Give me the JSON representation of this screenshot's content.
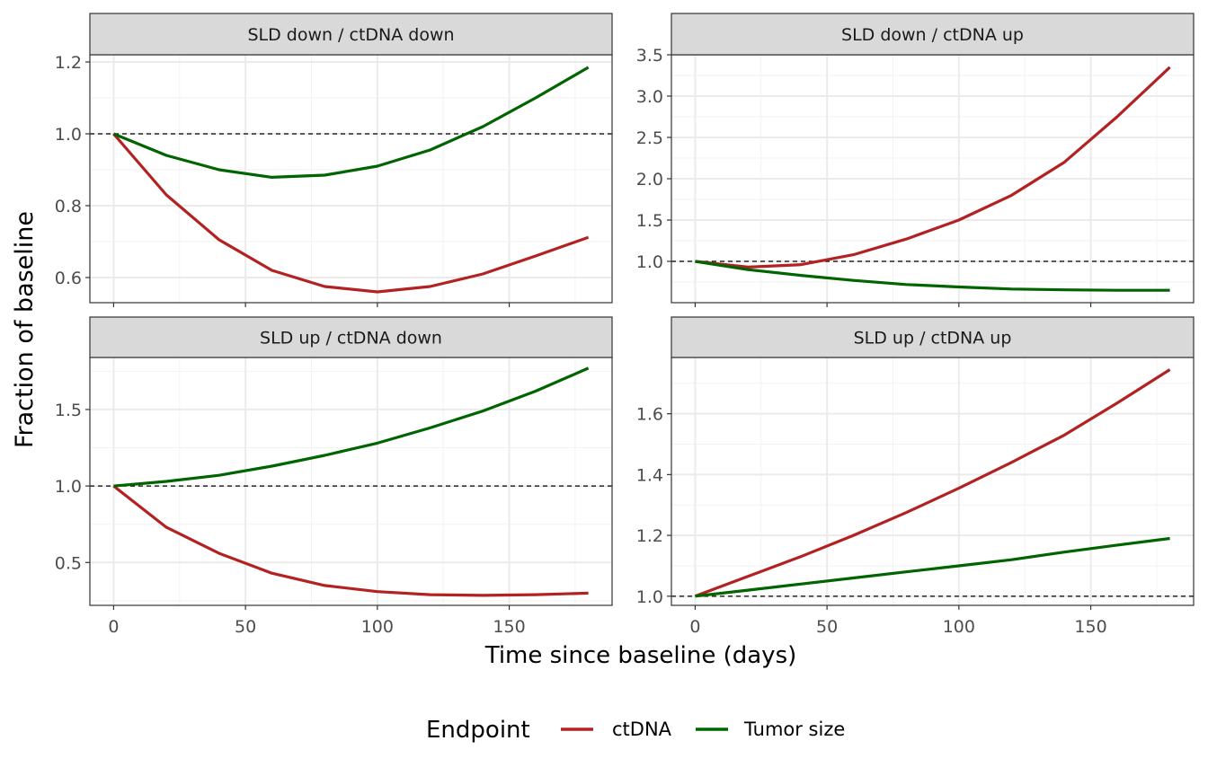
{
  "figure": {
    "ylabel": "Fraction of baseline",
    "xlabel": "Time since baseline (days)",
    "legend": {
      "title": "Endpoint",
      "placement": "bottom",
      "items": [
        {
          "label": "ctDNA",
          "color": "#B22222"
        },
        {
          "label": "Tumor size",
          "color": "#006400"
        }
      ]
    },
    "reference_line": {
      "y": 1.0,
      "style": "dashed",
      "color": "#000000"
    },
    "grid": true
  },
  "chart_data": [
    {
      "type": "line",
      "title": "SLD down / ctDNA down",
      "xlim": [
        -9,
        189
      ],
      "ylim": [
        0.53,
        1.22
      ],
      "x_ticks": [
        0,
        50,
        100,
        150
      ],
      "y_ticks": [
        0.6,
        0.8,
        1.0,
        1.2
      ],
      "y_tick_labels": [
        "0.6",
        "0.8",
        "1.0",
        "1.2"
      ],
      "show_x_tick_labels": false,
      "series": [
        {
          "name": "ctDNA",
          "color": "#B22222",
          "x": [
            0,
            20,
            40,
            60,
            80,
            100,
            120,
            140,
            160,
            180
          ],
          "y": [
            1.0,
            0.83,
            0.705,
            0.62,
            0.575,
            0.56,
            0.575,
            0.61,
            0.66,
            0.712
          ]
        },
        {
          "name": "Tumor size",
          "color": "#006400",
          "x": [
            0,
            20,
            40,
            60,
            80,
            100,
            120,
            140,
            160,
            180
          ],
          "y": [
            1.0,
            0.94,
            0.9,
            0.879,
            0.885,
            0.91,
            0.955,
            1.02,
            1.1,
            1.185
          ]
        }
      ]
    },
    {
      "type": "line",
      "title": "SLD down / ctDNA up",
      "xlim": [
        -9,
        189
      ],
      "ylim": [
        0.5,
        3.5
      ],
      "x_ticks": [
        0,
        50,
        100,
        150
      ],
      "y_ticks": [
        1.0,
        1.5,
        2.0,
        2.5,
        3.0,
        3.5
      ],
      "y_tick_labels": [
        "1.0",
        "1.5",
        "2.0",
        "2.5",
        "3.0",
        "3.5"
      ],
      "show_x_tick_labels": false,
      "series": [
        {
          "name": "ctDNA",
          "color": "#B22222",
          "x": [
            0,
            20,
            40,
            60,
            80,
            100,
            120,
            140,
            160,
            180
          ],
          "y": [
            1.0,
            0.93,
            0.96,
            1.08,
            1.27,
            1.5,
            1.8,
            2.2,
            2.75,
            3.35
          ]
        },
        {
          "name": "Tumor size",
          "color": "#006400",
          "x": [
            0,
            20,
            40,
            60,
            80,
            100,
            120,
            140,
            160,
            180
          ],
          "y": [
            1.0,
            0.9,
            0.83,
            0.77,
            0.72,
            0.69,
            0.665,
            0.655,
            0.65,
            0.65
          ]
        }
      ]
    },
    {
      "type": "line",
      "title": "SLD up / ctDNA down",
      "xlim": [
        -9,
        189
      ],
      "ylim": [
        0.22,
        1.84
      ],
      "x_ticks": [
        0,
        50,
        100,
        150
      ],
      "x_tick_labels": [
        "0",
        "50",
        "100",
        "150"
      ],
      "y_ticks": [
        0.5,
        1.0,
        1.5
      ],
      "y_tick_labels": [
        "0.5",
        "1.0",
        "1.5"
      ],
      "show_x_tick_labels": true,
      "series": [
        {
          "name": "ctDNA",
          "color": "#B22222",
          "x": [
            0,
            20,
            40,
            60,
            80,
            100,
            120,
            140,
            160,
            180
          ],
          "y": [
            1.0,
            0.73,
            0.56,
            0.43,
            0.35,
            0.31,
            0.29,
            0.285,
            0.29,
            0.3
          ]
        },
        {
          "name": "Tumor size",
          "color": "#006400",
          "x": [
            0,
            20,
            40,
            60,
            80,
            100,
            120,
            140,
            160,
            180
          ],
          "y": [
            1.0,
            1.03,
            1.07,
            1.13,
            1.2,
            1.28,
            1.38,
            1.49,
            1.62,
            1.77
          ]
        }
      ]
    },
    {
      "type": "line",
      "title": "SLD up / ctDNA up",
      "xlim": [
        -9,
        189
      ],
      "ylim": [
        0.97,
        1.785
      ],
      "x_ticks": [
        0,
        50,
        100,
        150
      ],
      "x_tick_labels": [
        "0",
        "50",
        "100",
        "150"
      ],
      "y_ticks": [
        1.0,
        1.2,
        1.4,
        1.6
      ],
      "y_tick_labels": [
        "1.0",
        "1.2",
        "1.4",
        "1.6"
      ],
      "show_x_tick_labels": true,
      "series": [
        {
          "name": "ctDNA",
          "color": "#B22222",
          "x": [
            0,
            20,
            40,
            60,
            80,
            100,
            120,
            140,
            160,
            180
          ],
          "y": [
            1.0,
            1.065,
            1.13,
            1.2,
            1.275,
            1.355,
            1.44,
            1.53,
            1.635,
            1.745
          ]
        },
        {
          "name": "Tumor size",
          "color": "#006400",
          "x": [
            0,
            20,
            40,
            60,
            80,
            100,
            120,
            140,
            160,
            180
          ],
          "y": [
            1.0,
            1.02,
            1.04,
            1.06,
            1.08,
            1.1,
            1.12,
            1.145,
            1.168,
            1.19
          ]
        }
      ]
    }
  ]
}
